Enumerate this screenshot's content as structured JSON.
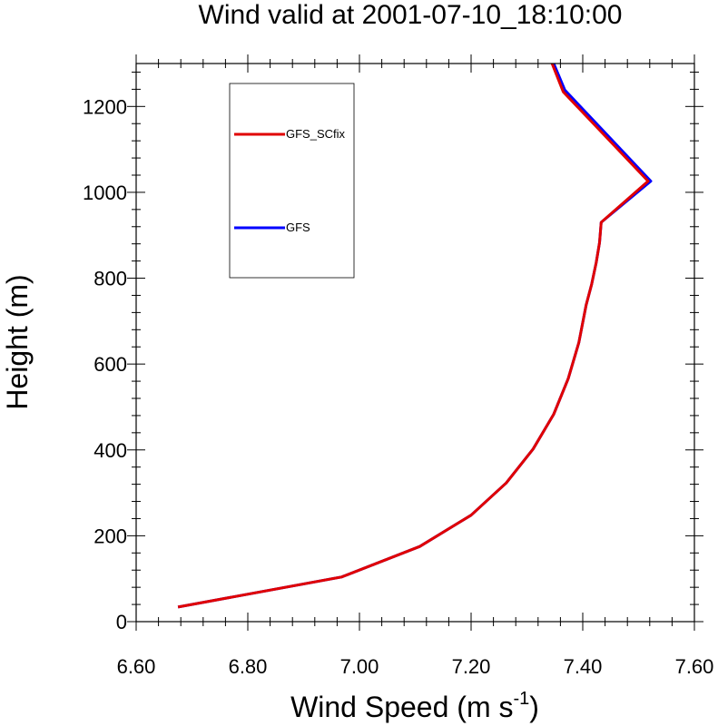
{
  "chart_data": {
    "type": "line",
    "title": "Wind valid at 2001-07-10_18:10:00",
    "xlabel": "Wind Speed (m s",
    "xlabel_sup": "-1",
    "xlabel_end": ")",
    "ylabel": "Height (m)",
    "xlim": [
      6.6,
      7.6
    ],
    "ylim": [
      0,
      1300
    ],
    "xticks": [
      6.6,
      6.8,
      7.0,
      7.2,
      7.4,
      7.6
    ],
    "xtick_labels": [
      "6.60",
      "6.80",
      "7.00",
      "7.20",
      "7.40",
      "7.60"
    ],
    "yticks": [
      0,
      200,
      400,
      600,
      800,
      1000,
      1200
    ],
    "ytick_labels": [
      "0",
      "200",
      "400",
      "600",
      "800",
      "1000",
      "1200"
    ],
    "grid": false,
    "legend_position": "top-left",
    "series": [
      {
        "name": "GFS",
        "color": "#0000ff",
        "x": [
          6.675,
          6.968,
          7.108,
          7.2,
          7.263,
          7.311,
          7.348,
          7.374,
          7.393,
          7.406,
          7.416,
          7.424,
          7.43,
          7.433,
          7.522,
          7.368,
          7.348
        ],
        "y": [
          34,
          104,
          175,
          248,
          323,
          402,
          483,
          566,
          650,
          737,
          786,
          836,
          883,
          930,
          1026,
          1238,
          1300
        ]
      },
      {
        "name": "GFS_SCfix",
        "color": "#e00000",
        "x": [
          6.675,
          6.968,
          7.108,
          7.2,
          7.263,
          7.311,
          7.348,
          7.374,
          7.393,
          7.406,
          7.416,
          7.424,
          7.43,
          7.433,
          7.517,
          7.365,
          7.345
        ],
        "y": [
          34,
          104,
          175,
          248,
          323,
          402,
          483,
          566,
          650,
          737,
          786,
          836,
          883,
          930,
          1026,
          1234,
          1300
        ]
      }
    ]
  }
}
